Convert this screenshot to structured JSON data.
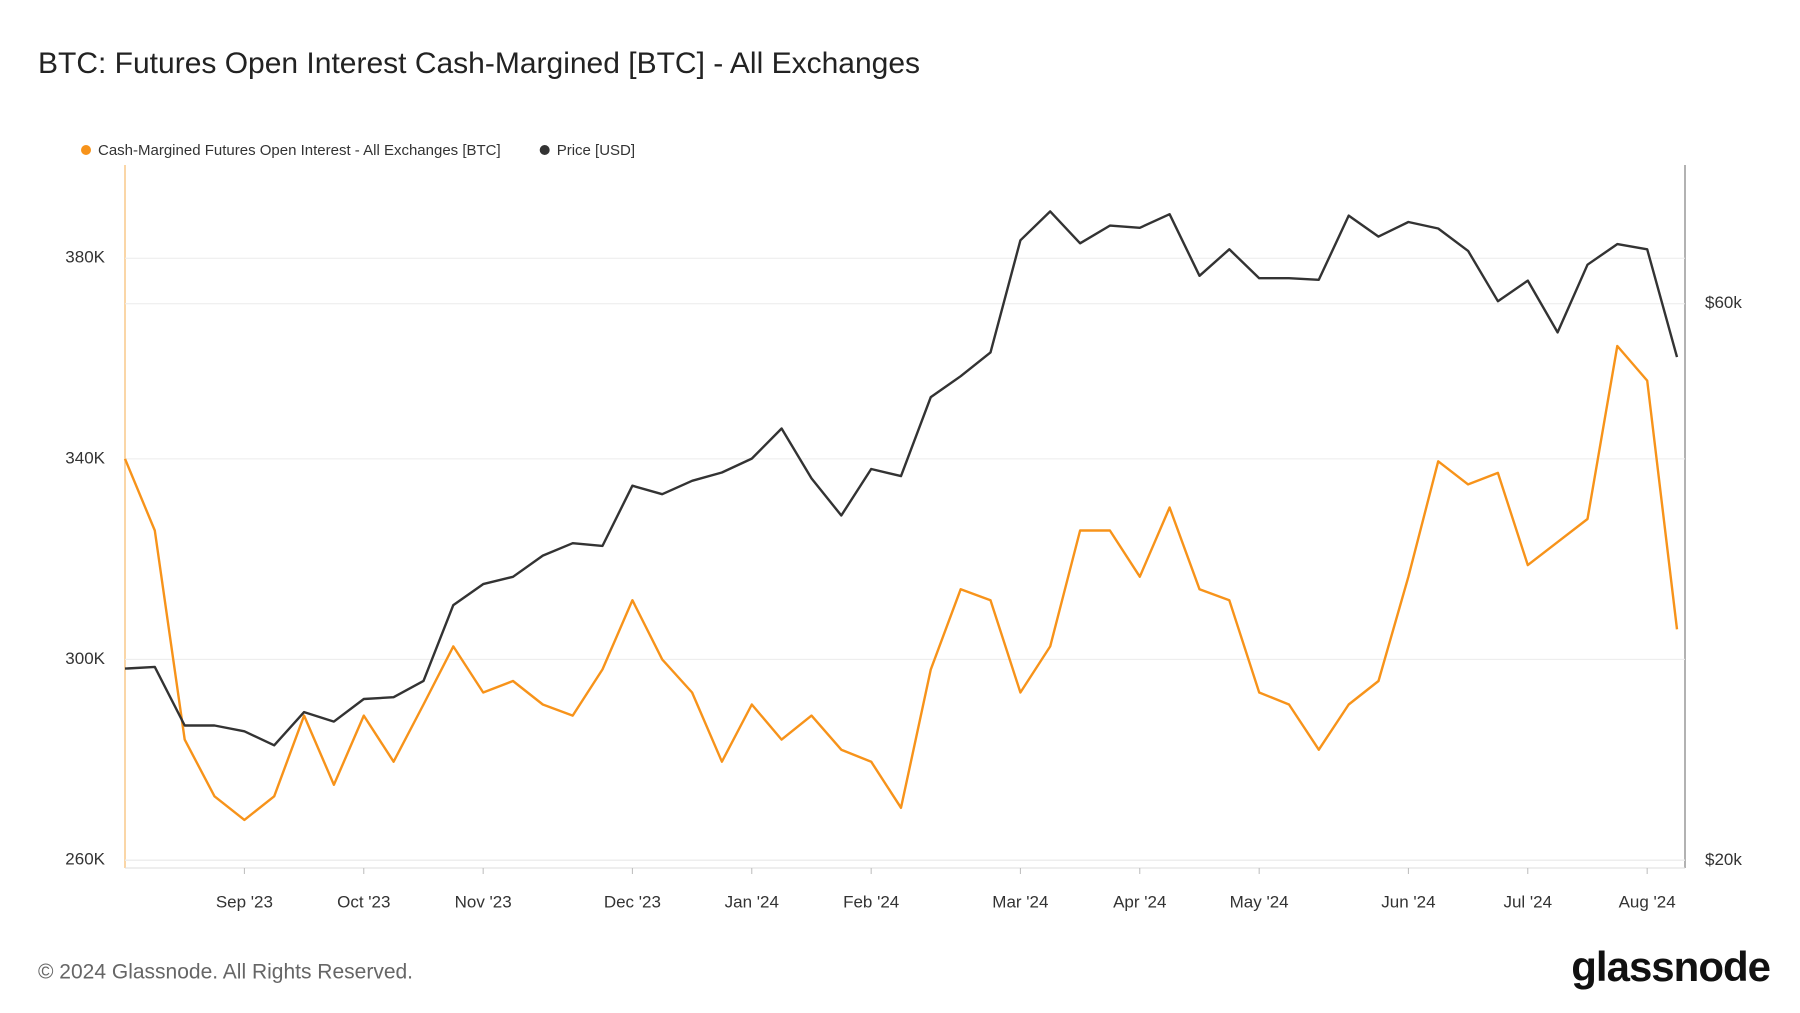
{
  "chart_data": {
    "type": "line",
    "title": "BTC: Futures Open Interest Cash-Margined [BTC] - All Exchanges",
    "footer": "© 2024 Glassnode. All Rights Reserved.",
    "brand": "glassnode",
    "categories": [
      null,
      null,
      null,
      null,
      "Sep '23",
      null,
      null,
      null,
      "Oct '23",
      null,
      null,
      null,
      "Nov '23",
      null,
      null,
      null,
      null,
      "Dec '23",
      null,
      null,
      null,
      "Jan '24",
      null,
      null,
      null,
      "Feb '24",
      null,
      null,
      null,
      null,
      "Mar '24",
      null,
      null,
      null,
      "Apr '24",
      null,
      null,
      null,
      "May '24",
      null,
      null,
      null,
      null,
      "Jun '24",
      null,
      null,
      null,
      "Jul '24",
      null,
      null,
      null,
      "Aug '24",
      null
    ],
    "series": [
      {
        "name": "Cash-Margined Futures Open Interest - All Exchanges [BTC]",
        "color": "#f7931a",
        "axis": "y",
        "values": [
          340000,
          325700,
          284000,
          272700,
          268000,
          272700,
          288800,
          275000,
          288800,
          279600,
          291000,
          302600,
          293400,
          295700,
          291000,
          288800,
          298000,
          311800,
          300000,
          293400,
          279600,
          291000,
          284000,
          288800,
          282000,
          279600,
          270400,
          298000,
          314000,
          311800,
          293400,
          302600,
          325700,
          325700,
          316500,
          330300,
          314000,
          311800,
          293400,
          291000,
          282000,
          291000,
          295700,
          316500,
          339500,
          334900,
          337200,
          318800,
          323400,
          328000,
          362500,
          355600,
          306000
        ]
      },
      {
        "name": "Price [USD]",
        "color": "#333333",
        "axis": "y2",
        "values": [
          29200,
          29300,
          26100,
          26100,
          25800,
          25100,
          26800,
          26300,
          27500,
          27600,
          28500,
          33100,
          34500,
          35000,
          36500,
          37400,
          37200,
          41900,
          41200,
          42300,
          43000,
          44200,
          46900,
          42500,
          39500,
          43300,
          42700,
          49900,
          52000,
          54500,
          68000,
          72000,
          67600,
          70000,
          69700,
          71600,
          63400,
          66800,
          63100,
          63100,
          62900,
          71400,
          68500,
          70500,
          69600,
          66600,
          60300,
          62800,
          56700,
          64800,
          67500,
          66800,
          54000
        ]
      }
    ],
    "ylim": [
      258400,
      398600
    ],
    "yticks": [
      {
        "value": 260000,
        "label": "260K"
      },
      {
        "value": 300000,
        "label": "300K"
      },
      {
        "value": 340000,
        "label": "340K"
      },
      {
        "value": 380000,
        "label": "380K"
      }
    ],
    "y2lim": [
      19700,
      78900
    ],
    "y2log": true,
    "y2ticks": [
      {
        "value": 20000,
        "label": "$20k"
      },
      {
        "value": 60000,
        "label": "$60k"
      }
    ],
    "grid": true
  }
}
